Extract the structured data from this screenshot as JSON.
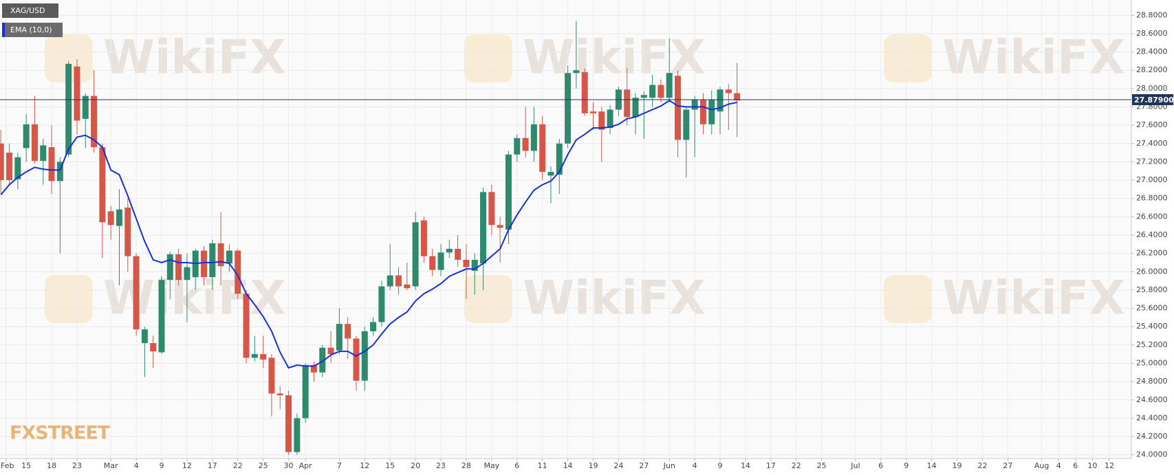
{
  "chart_data": {
    "type": "candlestick",
    "symbol": "XAG/USD",
    "watermark": "WikiFX",
    "logo": "FXSTREET",
    "grid": true,
    "up_color": "#2f8a6d",
    "down_color": "#d4574a",
    "xlim": [
      -3.1,
      130.6
    ],
    "xticks": [
      {
        "value": -2.4,
        "label": "Feb"
      },
      {
        "value": 0,
        "label": "15"
      },
      {
        "value": 3,
        "label": "18"
      },
      {
        "value": 6,
        "label": "23"
      },
      {
        "value": 10,
        "label": "Mar"
      },
      {
        "value": 13,
        "label": "4"
      },
      {
        "value": 16,
        "label": "9"
      },
      {
        "value": 19,
        "label": "12"
      },
      {
        "value": 22,
        "label": "17"
      },
      {
        "value": 25,
        "label": "22"
      },
      {
        "value": 28,
        "label": "25"
      },
      {
        "value": 31,
        "label": "30"
      },
      {
        "value": 33,
        "label": "Apr"
      },
      {
        "value": 37,
        "label": "7"
      },
      {
        "value": 40,
        "label": "12"
      },
      {
        "value": 43,
        "label": "15"
      },
      {
        "value": 46,
        "label": "20"
      },
      {
        "value": 49,
        "label": "23"
      },
      {
        "value": 52,
        "label": "28"
      },
      {
        "value": 55,
        "label": "May"
      },
      {
        "value": 58,
        "label": "6"
      },
      {
        "value": 61,
        "label": "11"
      },
      {
        "value": 64,
        "label": "14"
      },
      {
        "value": 67,
        "label": "19"
      },
      {
        "value": 70,
        "label": "24"
      },
      {
        "value": 73,
        "label": "27"
      },
      {
        "value": 76,
        "label": "Jun"
      },
      {
        "value": 79,
        "label": "4"
      },
      {
        "value": 82,
        "label": "9"
      },
      {
        "value": 85,
        "label": "14"
      },
      {
        "value": 88,
        "label": "17"
      },
      {
        "value": 91,
        "label": "22"
      },
      {
        "value": 94,
        "label": "25"
      },
      {
        "value": 98,
        "label": "Jul"
      },
      {
        "value": 101,
        "label": "6"
      },
      {
        "value": 104,
        "label": "9"
      },
      {
        "value": 107,
        "label": "14"
      },
      {
        "value": 110,
        "label": "19"
      },
      {
        "value": 113,
        "label": "22"
      },
      {
        "value": 116,
        "label": "27"
      },
      {
        "value": 120,
        "label": "Aug"
      },
      {
        "value": 122,
        "label": "4"
      },
      {
        "value": 124,
        "label": "6"
      },
      {
        "value": 126,
        "label": "10"
      },
      {
        "value": 128,
        "label": "12"
      }
    ],
    "ylim": [
      23.96,
      28.96
    ],
    "yticks": [
      {
        "value": 24.0,
        "label": "24.0000"
      },
      {
        "value": 24.2,
        "label": "24.2000"
      },
      {
        "value": 24.4,
        "label": "24.4000"
      },
      {
        "value": 24.6,
        "label": "24.6000"
      },
      {
        "value": 24.8,
        "label": "24.8000"
      },
      {
        "value": 25.0,
        "label": "25.0000"
      },
      {
        "value": 25.2,
        "label": "25.2000"
      },
      {
        "value": 25.4,
        "label": "25.4000"
      },
      {
        "value": 25.6,
        "label": "25.6000"
      },
      {
        "value": 25.8,
        "label": "25.8000"
      },
      {
        "value": 26.0,
        "label": "26.0000"
      },
      {
        "value": 26.2,
        "label": "26.2000"
      },
      {
        "value": 26.4,
        "label": "26.4000"
      },
      {
        "value": 26.6,
        "label": "26.6000"
      },
      {
        "value": 26.8,
        "label": "26.8000"
      },
      {
        "value": 27.0,
        "label": "27.0000"
      },
      {
        "value": 27.2,
        "label": "27.2000"
      },
      {
        "value": 27.4,
        "label": "27.4000"
      },
      {
        "value": 27.6,
        "label": "27.6000"
      },
      {
        "value": 27.8,
        "label": "27.8000"
      },
      {
        "value": 28.0,
        "label": "28.0000"
      },
      {
        "value": 28.2,
        "label": "28.2000"
      },
      {
        "value": 28.4,
        "label": "28.4000"
      },
      {
        "value": 28.6,
        "label": "28.6000"
      },
      {
        "value": 28.8,
        "label": "28.8000"
      }
    ],
    "price_line": {
      "value": 27.879,
      "label": "27.87900",
      "color": "#1f3658"
    },
    "x": [
      -3,
      -2,
      -1,
      0,
      1,
      2,
      3,
      4,
      5,
      6,
      7,
      8,
      9,
      10,
      11,
      12,
      13,
      14,
      15,
      16,
      17,
      18,
      19,
      20,
      21,
      22,
      23,
      24,
      25,
      26,
      27,
      28,
      29,
      30,
      31,
      32,
      33,
      34,
      35,
      36,
      37,
      38,
      39,
      40,
      41,
      42,
      43,
      44,
      45,
      46,
      47,
      48,
      49,
      50,
      51,
      52,
      53,
      54,
      55,
      56,
      57,
      58,
      59,
      60,
      61,
      62,
      63,
      64,
      65,
      66,
      67,
      68,
      69,
      70,
      71,
      72,
      73,
      74,
      75,
      76,
      77,
      78,
      79,
      80,
      81,
      82,
      83,
      84
    ],
    "open": [
      27.4,
      27.3,
      27.01,
      27.35,
      27.61,
      27.21,
      27.36,
      26.99,
      27.28,
      28.24,
      27.67,
      27.92,
      27.36,
      26.66,
      26.5,
      26.7,
      26.17,
      25.22,
      25.22,
      25.12,
      25.91,
      26.19,
      25.91,
      25.94,
      26.23,
      25.94,
      26.31,
      26.09,
      26.23,
      25.76,
      25.06,
      25.1,
      25.06,
      24.67,
      24.65,
      24.03,
      24.4,
      24.98,
      24.9,
      25.17,
      25.14,
      25.43,
      25.27,
      24.81,
      25.35,
      25.45,
      25.84,
      25.96,
      25.86,
      25.84,
      26.56,
      26.17,
      26.02,
      26.21,
      26.25,
      26.13,
      26.01,
      26.09,
      26.87,
      26.51,
      26.46,
      27.28,
      27.46,
      27.32,
      27.61,
      27.05,
      27.06,
      27.4,
      28.17,
      28.18,
      27.75,
      27.75,
      27.57,
      27.77,
      27.99,
      27.69,
      27.9,
      27.9,
      28.04,
      27.9,
      28.14,
      27.44,
      27.77,
      27.88,
      27.61,
      27.75,
      27.99,
      27.95
    ],
    "high": [
      27.55,
      27.4,
      27.3,
      27.72,
      27.92,
      27.45,
      27.6,
      27.25,
      28.3,
      28.32,
      27.95,
      28.2,
      27.4,
      26.72,
      26.9,
      26.8,
      26.2,
      25.4,
      25.3,
      25.95,
      26.22,
      26.25,
      26.2,
      26.25,
      26.28,
      26.35,
      26.65,
      26.3,
      26.25,
      25.8,
      25.3,
      25.3,
      25.1,
      24.75,
      24.7,
      24.45,
      25.0,
      25.02,
      25.2,
      25.35,
      25.6,
      25.5,
      25.3,
      25.4,
      25.5,
      25.9,
      26.3,
      26.05,
      26.1,
      26.65,
      26.6,
      26.25,
      26.3,
      26.35,
      26.4,
      26.3,
      26.2,
      26.92,
      26.95,
      26.6,
      27.32,
      27.5,
      27.8,
      27.8,
      27.7,
      27.15,
      27.45,
      28.25,
      28.74,
      28.22,
      27.85,
      27.8,
      27.82,
      28.02,
      28.22,
      27.95,
      27.97,
      28.15,
      28.1,
      28.55,
      28.2,
      27.8,
      27.92,
      27.95,
      27.98,
      28.02,
      28.05,
      28.28
    ],
    "low": [
      26.85,
      26.95,
      26.9,
      27.2,
      27.18,
      26.95,
      26.85,
      26.2,
      27.25,
      27.5,
      27.35,
      27.3,
      26.15,
      26.35,
      25.85,
      26.0,
      25.3,
      24.85,
      24.95,
      25.1,
      25.7,
      25.85,
      25.45,
      25.8,
      25.85,
      25.8,
      25.85,
      26.0,
      25.7,
      25.0,
      25.02,
      24.95,
      24.42,
      24.5,
      24.0,
      24.0,
      24.35,
      24.8,
      24.85,
      25.0,
      25.1,
      25.05,
      24.7,
      24.7,
      25.3,
      25.4,
      25.8,
      25.75,
      25.8,
      25.8,
      26.1,
      25.95,
      25.95,
      26.15,
      26.05,
      25.7,
      25.75,
      25.8,
      26.4,
      26.1,
      26.3,
      27.2,
      27.25,
      27.2,
      27.0,
      26.75,
      26.85,
      27.35,
      28.0,
      27.7,
      27.55,
      27.2,
      27.5,
      27.7,
      27.6,
      27.5,
      27.45,
      27.8,
      27.85,
      27.85,
      27.25,
      27.03,
      27.25,
      27.5,
      27.5,
      27.5,
      27.55,
      27.47
    ],
    "close": [
      27.0,
      27.0,
      27.25,
      27.61,
      27.21,
      27.38,
      26.99,
      27.2,
      28.27,
      27.65,
      27.92,
      27.36,
      26.54,
      26.51,
      26.68,
      26.17,
      25.37,
      25.37,
      25.13,
      25.91,
      26.19,
      25.91,
      26.05,
      26.23,
      25.94,
      26.31,
      26.06,
      26.23,
      25.76,
      25.06,
      25.1,
      25.04,
      24.67,
      24.65,
      24.03,
      24.4,
      24.98,
      24.9,
      25.17,
      25.1,
      25.43,
      25.27,
      24.81,
      25.35,
      25.45,
      25.84,
      25.96,
      25.84,
      25.82,
      26.54,
      26.17,
      26.02,
      26.21,
      26.25,
      26.13,
      26.05,
      26.13,
      26.87,
      26.51,
      26.48,
      27.28,
      27.46,
      27.32,
      27.61,
      27.09,
      27.09,
      27.4,
      28.17,
      28.2,
      27.73,
      27.73,
      27.55,
      27.77,
      27.99,
      27.69,
      27.9,
      27.93,
      28.04,
      27.9,
      28.17,
      27.44,
      27.77,
      27.88,
      27.61,
      27.88,
      27.99,
      27.95,
      27.87
    ],
    "overlays": [
      {
        "name": "EMA (10,0)",
        "color": "#1530d6",
        "values": [
          26.84,
          26.95,
          27.03,
          27.09,
          27.14,
          27.12,
          27.11,
          27.11,
          27.34,
          27.47,
          27.49,
          27.44,
          27.36,
          27.11,
          27.06,
          26.83,
          26.58,
          26.33,
          26.13,
          26.1,
          26.13,
          26.1,
          26.1,
          26.09,
          26.1,
          26.1,
          26.11,
          26.09,
          25.96,
          25.76,
          25.64,
          25.51,
          25.35,
          25.12,
          24.95,
          24.98,
          24.97,
          24.97,
          25.02,
          25.09,
          25.13,
          25.13,
          25.08,
          25.13,
          25.2,
          25.32,
          25.43,
          25.5,
          25.56,
          25.68,
          25.76,
          25.81,
          25.87,
          25.95,
          25.99,
          26.03,
          26.03,
          26.09,
          26.17,
          26.25,
          26.46,
          26.62,
          26.76,
          26.89,
          26.95,
          26.99,
          27.09,
          27.28,
          27.44,
          27.5,
          27.57,
          27.57,
          27.58,
          27.61,
          27.67,
          27.69,
          27.73,
          27.77,
          27.81,
          27.87,
          27.81,
          27.8,
          27.8,
          27.8,
          27.77,
          27.79,
          27.83,
          27.85
        ]
      }
    ]
  }
}
